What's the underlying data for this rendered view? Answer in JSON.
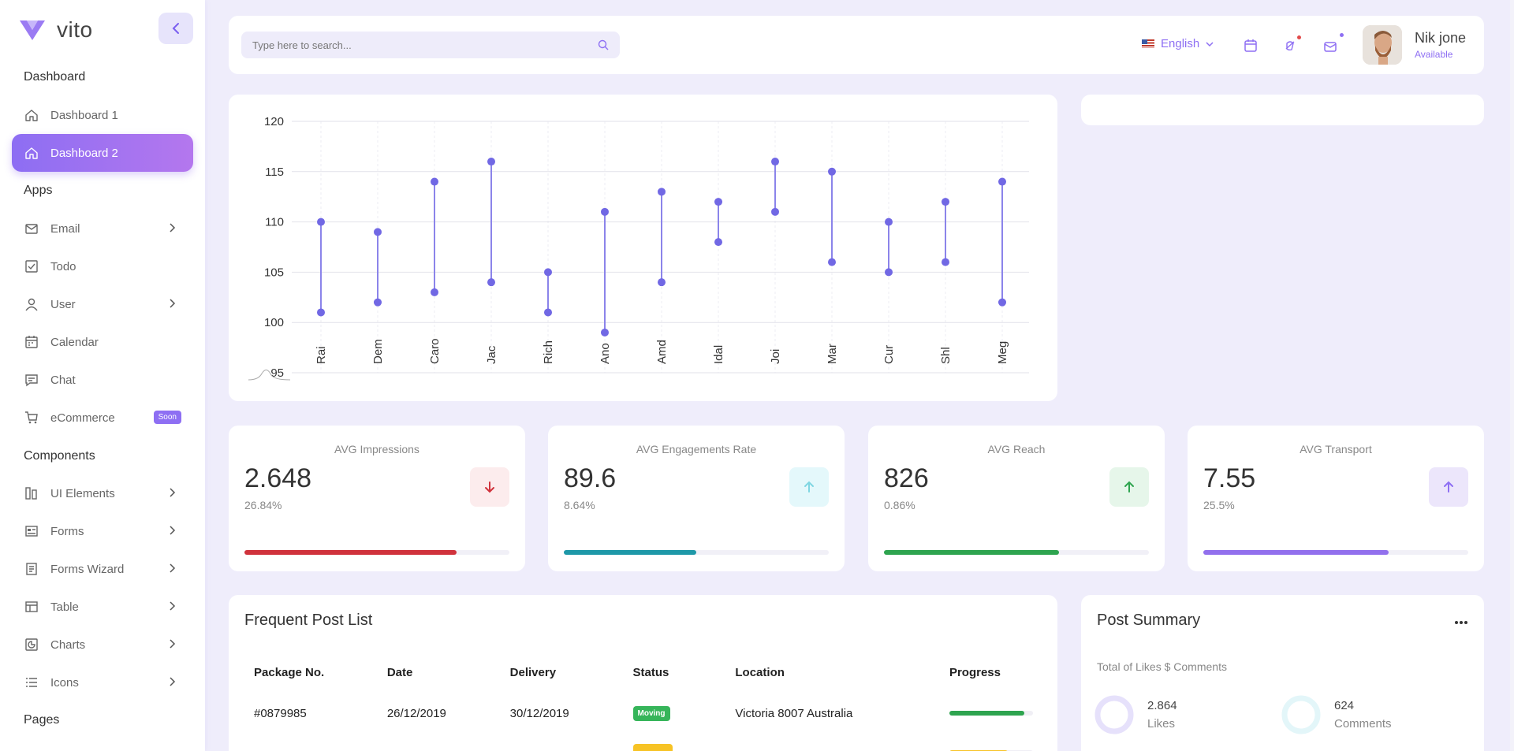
{
  "brand": {
    "name": "vito"
  },
  "sidebar": {
    "sections": {
      "dashboard": "Dashboard",
      "apps": "Apps",
      "components": "Components",
      "pages": "Pages"
    },
    "items": [
      {
        "label": "Dashboard 1",
        "icon": "home-icon"
      },
      {
        "label": "Dashboard 2",
        "icon": "home-icon",
        "active": true
      },
      {
        "label": "Email",
        "icon": "mail-icon",
        "has_children": true
      },
      {
        "label": "Todo",
        "icon": "checkbox-icon"
      },
      {
        "label": "User",
        "icon": "user-icon",
        "has_children": true
      },
      {
        "label": "Calendar",
        "icon": "calendar-icon"
      },
      {
        "label": "Chat",
        "icon": "chat-icon"
      },
      {
        "label": "eCommerce",
        "icon": "cart-icon",
        "badge": "Soon"
      },
      {
        "label": "UI Elements",
        "icon": "ui-elements-icon",
        "has_children": true
      },
      {
        "label": "Forms",
        "icon": "forms-icon",
        "has_children": true
      },
      {
        "label": "Forms Wizard",
        "icon": "wizard-icon",
        "has_children": true
      },
      {
        "label": "Table",
        "icon": "table-icon",
        "has_children": true
      },
      {
        "label": "Charts",
        "icon": "chart-icon",
        "has_children": true
      },
      {
        "label": "Icons",
        "icon": "list-icon",
        "has_children": true
      }
    ]
  },
  "header": {
    "search_placeholder": "Type here to search...",
    "language": "English",
    "user": {
      "name": "Nik jone",
      "status": "Available"
    }
  },
  "chart_data": {
    "type": "dumbbell",
    "categories": [
      "Rai",
      "Dem",
      "Caro",
      "Jac",
      "Rich",
      "Ano",
      "Amd",
      "Idal",
      "Joi",
      "Mar",
      "Cur",
      "Shl",
      "Meg"
    ],
    "series": [
      {
        "values": [
          110,
          109,
          114,
          116,
          105,
          111,
          113,
          112,
          116,
          115,
          110,
          112,
          114
        ]
      },
      {
        "values": [
          101,
          102,
          103,
          104,
          101,
          99,
          104,
          108,
          111,
          106,
          105,
          106,
          102
        ]
      }
    ],
    "yticks": [
      120,
      115,
      110,
      105,
      100,
      95
    ],
    "ylim": [
      95,
      120
    ],
    "color": "#7168e4",
    "grid": true
  },
  "stats": [
    {
      "title": "AVG Impressions",
      "value": "2.648",
      "sub": "26.84%",
      "direction": "down",
      "progress": 0.8,
      "color": "#d0323c",
      "btn_bg": "#fceced",
      "icon_color": "#d0323c"
    },
    {
      "title": "AVG Engagements Rate",
      "value": "89.6",
      "sub": "8.64%",
      "direction": "up",
      "progress": 0.5,
      "color": "#1e98a8",
      "btn_bg": "#e4f8fb",
      "icon_color": "#7fd6e2"
    },
    {
      "title": "AVG Reach",
      "value": "826",
      "sub": "0.86%",
      "direction": "up",
      "progress": 0.66,
      "color": "#2ea44f",
      "btn_bg": "#e6f6ea",
      "icon_color": "#2ea44f"
    },
    {
      "title": "AVG Transport",
      "value": "7.55",
      "sub": "25.5%",
      "direction": "up",
      "progress": 0.7,
      "color": "#9270ed",
      "btn_bg": "#ece6fb",
      "icon_color": "#8e6ff3"
    }
  ],
  "posts": {
    "title": "Frequent Post List",
    "columns": [
      "Package No.",
      "Date",
      "Delivery",
      "Status",
      "Location",
      "Progress"
    ],
    "rows": [
      {
        "package": "#0879985",
        "date": "26/12/2019",
        "delivery": "30/12/2019",
        "status": "Moving",
        "status_color": "#36b55a",
        "location": "Victoria 8007 Australia",
        "progress": 0.9,
        "progress_color": "#2ea44f"
      },
      {
        "package": "",
        "date": "",
        "delivery": "",
        "status": "",
        "status_color": "#f7c325",
        "location": "",
        "progress": 0.7,
        "progress_color": "#f7c325"
      }
    ]
  },
  "summary": {
    "title": "Post Summary",
    "subtitle": "Total of Likes $ Comments",
    "likes": {
      "value": "2.864",
      "label": "Likes"
    },
    "comments": {
      "value": "624",
      "label": "Comments"
    }
  }
}
